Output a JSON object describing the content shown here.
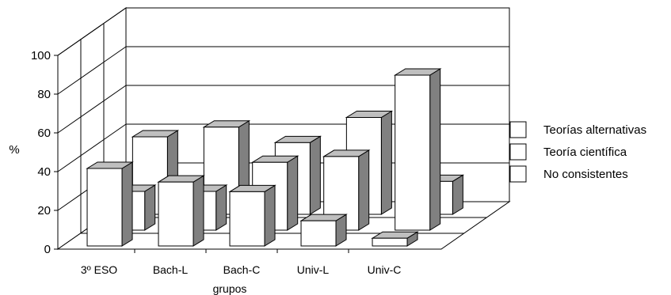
{
  "chart_data": {
    "type": "bar",
    "subtype": "3d-depth",
    "categories": [
      "3º ESO",
      "Bach-L",
      "Bach-C",
      "Univ-L",
      "Univ-C"
    ],
    "series": [
      {
        "name": "Teorías alternativas",
        "values": [
          40,
          33,
          28,
          13,
          4
        ]
      },
      {
        "name": "Teoría científica",
        "values": [
          20,
          20,
          35,
          38,
          80
        ]
      },
      {
        "name": "No consistentes",
        "values": [
          40,
          45,
          37,
          50,
          17
        ]
      }
    ],
    "xlabel": "grupos",
    "ylabel": "%",
    "ylim": [
      0,
      100
    ],
    "yticks": [
      0,
      20,
      40,
      60,
      80,
      100
    ],
    "grid": true,
    "legend_position": "right",
    "colors": {
      "face": "#ffffff",
      "side": "#808080",
      "top": "#bfbfbf",
      "line": "#000000"
    }
  }
}
